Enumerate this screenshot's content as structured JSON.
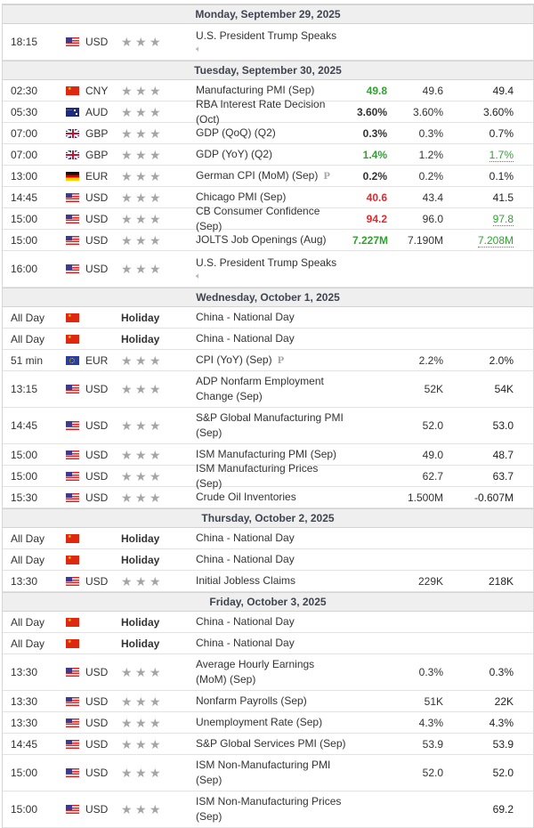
{
  "colors": {
    "better": "#2ca52c",
    "worse": "#e8262c",
    "star": "#a5a5a5",
    "day_header_bg": "#efefef"
  },
  "days": [
    {
      "title": "Monday, September 29, 2025",
      "events": [
        {
          "time": "18:15",
          "flag": "us",
          "currency": "USD",
          "importance": 3,
          "event": "U.S. President Trump Speaks",
          "icon": "speaker-icon",
          "tall": true,
          "actual": "",
          "forecast": "",
          "previous": ""
        }
      ]
    },
    {
      "title": "Tuesday, September 30, 2025",
      "events": [
        {
          "time": "02:30",
          "flag": "cn",
          "currency": "CNY",
          "importance": 3,
          "event": "Manufacturing PMI (Sep)",
          "actual": "49.8",
          "actual_status": "better",
          "forecast": "49.6",
          "previous": "49.4"
        },
        {
          "time": "05:30",
          "flag": "au",
          "currency": "AUD",
          "importance": 3,
          "event": "RBA Interest Rate Decision (Oct)",
          "actual": "3.60%",
          "forecast": "3.60%",
          "previous": "3.60%"
        },
        {
          "time": "07:00",
          "flag": "gb",
          "currency": "GBP",
          "importance": 3,
          "event": "GDP (QoQ) (Q2)",
          "actual": "0.3%",
          "forecast": "0.3%",
          "previous": "0.7%"
        },
        {
          "time": "07:00",
          "flag": "gb",
          "currency": "GBP",
          "importance": 3,
          "event": "GDP (YoY) (Q2)",
          "actual": "1.4%",
          "actual_status": "better",
          "forecast": "1.2%",
          "previous": "1.7%",
          "previous_status": "revised-better"
        },
        {
          "time": "13:00",
          "flag": "de",
          "currency": "EUR",
          "importance": 3,
          "event": "German CPI (MoM) (Sep)",
          "icon": "preliminary-icon",
          "actual": "0.2%",
          "forecast": "0.2%",
          "previous": "0.1%"
        },
        {
          "time": "14:45",
          "flag": "us",
          "currency": "USD",
          "importance": 3,
          "event": "Chicago PMI (Sep)",
          "actual": "40.6",
          "actual_status": "worse",
          "forecast": "43.4",
          "previous": "41.5"
        },
        {
          "time": "15:00",
          "flag": "us",
          "currency": "USD",
          "importance": 3,
          "event": "CB Consumer Confidence (Sep)",
          "actual": "94.2",
          "actual_status": "worse",
          "forecast": "96.0",
          "previous": "97.8",
          "previous_status": "revised-better"
        },
        {
          "time": "15:00",
          "flag": "us",
          "currency": "USD",
          "importance": 3,
          "event": "JOLTS Job Openings (Aug)",
          "actual": "7.227M",
          "actual_status": "better",
          "forecast": "7.190M",
          "previous": "7.208M",
          "previous_status": "revised-better"
        },
        {
          "time": "16:00",
          "flag": "us",
          "currency": "USD",
          "importance": 3,
          "event": "U.S. President Trump Speaks",
          "icon": "speaker-icon",
          "tall": true,
          "actual": "",
          "forecast": "",
          "previous": ""
        }
      ]
    },
    {
      "title": "Wednesday, October 1, 2025",
      "events": [
        {
          "time": "All Day",
          "flag": "cn",
          "currency": "",
          "holiday": "Holiday",
          "event": "China - National Day"
        },
        {
          "time": "All Day",
          "flag": "cn",
          "currency": "",
          "holiday": "Holiday",
          "event": "China - National Day"
        },
        {
          "time": "51 min",
          "flag": "eu",
          "currency": "EUR",
          "importance": 3,
          "event": "CPI (YoY) (Sep)",
          "icon": "preliminary-icon",
          "actual": "",
          "forecast": "2.2%",
          "previous": "2.0%"
        },
        {
          "time": "13:15",
          "flag": "us",
          "currency": "USD",
          "importance": 3,
          "event": "ADP Nonfarm Employment Change (Sep)",
          "tall": true,
          "actual": "",
          "forecast": "52K",
          "previous": "54K"
        },
        {
          "time": "14:45",
          "flag": "us",
          "currency": "USD",
          "importance": 3,
          "event": "S&P Global Manufacturing PMI (Sep)",
          "tall": true,
          "actual": "",
          "forecast": "52.0",
          "previous": "53.0"
        },
        {
          "time": "15:00",
          "flag": "us",
          "currency": "USD",
          "importance": 3,
          "event": "ISM Manufacturing PMI (Sep)",
          "actual": "",
          "forecast": "49.0",
          "previous": "48.7"
        },
        {
          "time": "15:00",
          "flag": "us",
          "currency": "USD",
          "importance": 3,
          "event": "ISM Manufacturing Prices (Sep)",
          "actual": "",
          "forecast": "62.7",
          "previous": "63.7"
        },
        {
          "time": "15:30",
          "flag": "us",
          "currency": "USD",
          "importance": 3,
          "event": "Crude Oil Inventories",
          "actual": "",
          "forecast": "1.500M",
          "previous": "-0.607M"
        }
      ]
    },
    {
      "title": "Thursday, October 2, 2025",
      "events": [
        {
          "time": "All Day",
          "flag": "cn",
          "currency": "",
          "holiday": "Holiday",
          "event": "China - National Day"
        },
        {
          "time": "All Day",
          "flag": "cn",
          "currency": "",
          "holiday": "Holiday",
          "event": "China - National Day"
        },
        {
          "time": "13:30",
          "flag": "us",
          "currency": "USD",
          "importance": 3,
          "event": "Initial Jobless Claims",
          "actual": "",
          "forecast": "229K",
          "previous": "218K"
        }
      ]
    },
    {
      "title": "Friday, October 3, 2025",
      "events": [
        {
          "time": "All Day",
          "flag": "cn",
          "currency": "",
          "holiday": "Holiday",
          "event": "China - National Day"
        },
        {
          "time": "All Day",
          "flag": "cn",
          "currency": "",
          "holiday": "Holiday",
          "event": "China - National Day"
        },
        {
          "time": "13:30",
          "flag": "us",
          "currency": "USD",
          "importance": 3,
          "event": "Average Hourly Earnings (MoM) (Sep)",
          "tall": true,
          "actual": "",
          "forecast": "0.3%",
          "previous": "0.3%"
        },
        {
          "time": "13:30",
          "flag": "us",
          "currency": "USD",
          "importance": 3,
          "event": "Nonfarm Payrolls (Sep)",
          "actual": "",
          "forecast": "51K",
          "previous": "22K"
        },
        {
          "time": "13:30",
          "flag": "us",
          "currency": "USD",
          "importance": 3,
          "event": "Unemployment Rate (Sep)",
          "actual": "",
          "forecast": "4.3%",
          "previous": "4.3%"
        },
        {
          "time": "14:45",
          "flag": "us",
          "currency": "USD",
          "importance": 3,
          "event": "S&P Global Services PMI (Sep)",
          "actual": "",
          "forecast": "53.9",
          "previous": "53.9"
        },
        {
          "time": "15:00",
          "flag": "us",
          "currency": "USD",
          "importance": 3,
          "event": "ISM Non-Manufacturing PMI (Sep)",
          "tall": true,
          "actual": "",
          "forecast": "52.0",
          "previous": "52.0"
        },
        {
          "time": "15:00",
          "flag": "us",
          "currency": "USD",
          "importance": 3,
          "event": "ISM Non-Manufacturing Prices (Sep)",
          "tall": true,
          "actual": "",
          "forecast": "",
          "previous": "69.2"
        }
      ]
    }
  ]
}
